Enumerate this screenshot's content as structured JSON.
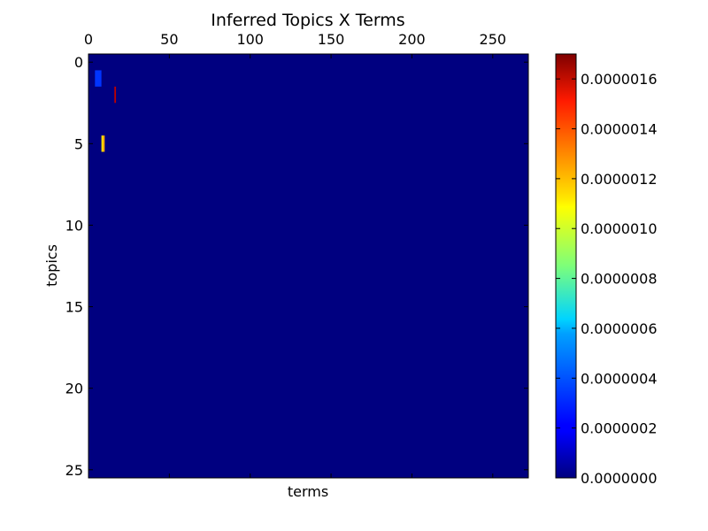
{
  "chart_data": {
    "type": "heatmap",
    "title": "Inferred Topics X Terms",
    "xlabel": "terms",
    "ylabel": "topics",
    "x_axis_position": "top",
    "xlim": [
      0,
      272
    ],
    "ylim": [
      25.5,
      -0.5
    ],
    "x_ticks": [
      0,
      50,
      100,
      150,
      200,
      250
    ],
    "x_tick_labels": [
      "0",
      "50",
      "100",
      "150",
      "200",
      "250"
    ],
    "y_ticks": [
      0,
      5,
      10,
      15,
      20,
      25
    ],
    "y_tick_labels": [
      "0",
      "5",
      "10",
      "15",
      "20",
      "25"
    ],
    "colormap": "jet",
    "background_value": 0.0,
    "nonzero_cells": [
      {
        "topic": 1,
        "term_start": 4,
        "term_end": 8,
        "value": 3e-07
      },
      {
        "topic": 2,
        "term_start": 16,
        "term_end": 17,
        "value": 1.6e-06
      },
      {
        "topic": 5,
        "term_start": 8,
        "term_end": 9,
        "value": 1.1e-06
      },
      {
        "topic": 5,
        "term_start": 9,
        "term_end": 10,
        "value": 1.2e-06
      }
    ],
    "colorbar": {
      "vmin": 0.0,
      "vmax": 1.7e-06,
      "ticks": [
        0.0,
        2e-07,
        4e-07,
        6e-07,
        8e-07,
        1e-06,
        1.2e-06,
        1.4e-06,
        1.6e-06
      ],
      "tick_labels": [
        "0.0000000",
        "0.0000002",
        "0.0000004",
        "0.0000006",
        "0.0000008",
        "0.0000010",
        "0.0000012",
        "0.0000014",
        "0.0000016"
      ]
    }
  }
}
